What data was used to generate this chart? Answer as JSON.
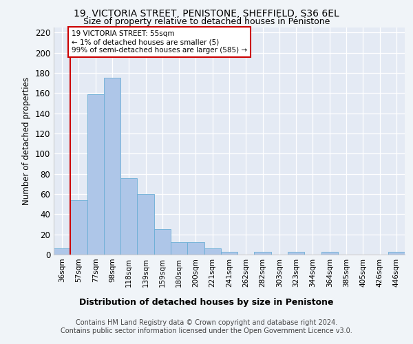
{
  "title_line1": "19, VICTORIA STREET, PENISTONE, SHEFFIELD, S36 6EL",
  "title_line2": "Size of property relative to detached houses in Penistone",
  "xlabel": "Distribution of detached houses by size in Penistone",
  "ylabel": "Number of detached properties",
  "categories": [
    "36sqm",
    "57sqm",
    "77sqm",
    "98sqm",
    "118sqm",
    "139sqm",
    "159sqm",
    "180sqm",
    "200sqm",
    "221sqm",
    "241sqm",
    "262sqm",
    "282sqm",
    "303sqm",
    "323sqm",
    "344sqm",
    "364sqm",
    "385sqm",
    "405sqm",
    "426sqm",
    "446sqm"
  ],
  "values": [
    6,
    54,
    159,
    175,
    76,
    60,
    25,
    12,
    12,
    6,
    3,
    0,
    3,
    0,
    3,
    0,
    3,
    0,
    0,
    0,
    3
  ],
  "bar_color": "#aec6e8",
  "bar_edge_color": "#6aaed6",
  "highlight_color": "#cc0000",
  "annotation_text": "19 VICTORIA STREET: 55sqm\n← 1% of detached houses are smaller (5)\n99% of semi-detached houses are larger (585) →",
  "annotation_box_color": "#ffffff",
  "annotation_box_edge_color": "#cc0000",
  "ylim": [
    0,
    225
  ],
  "yticks": [
    0,
    20,
    40,
    60,
    80,
    100,
    120,
    140,
    160,
    180,
    200,
    220
  ],
  "footer_line1": "Contains HM Land Registry data © Crown copyright and database right 2024.",
  "footer_line2": "Contains public sector information licensed under the Open Government Licence v3.0.",
  "bg_color": "#f0f4f8",
  "plot_bg_color": "#e4eaf4"
}
